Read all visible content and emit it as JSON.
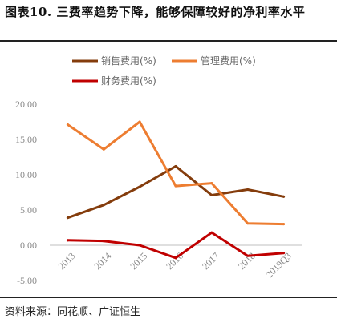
{
  "header": {
    "title": "图表10.  三费率趋势下降，能够保障较好的净利率水平"
  },
  "footer": {
    "source": "资料来源：同花顺、广证恒生"
  },
  "chart_data": {
    "type": "line",
    "title": "",
    "xlabel": "",
    "ylabel": "",
    "categories": [
      "2013",
      "2014",
      "2015",
      "2016",
      "2017",
      "2018",
      "2019Q3"
    ],
    "ylim": [
      -5,
      20
    ],
    "yticks": [
      "20.00",
      "15.00",
      "10.00",
      "5.00",
      "0.00",
      "-5.00"
    ],
    "ytick_values": [
      20,
      15,
      10,
      5,
      0,
      -5
    ],
    "grid": false,
    "legend_position": "top",
    "series": [
      {
        "name": "销售费用(%)",
        "color": "#843C0C",
        "values": [
          3.9,
          5.7,
          8.3,
          11.2,
          7.1,
          7.9,
          6.9
        ]
      },
      {
        "name": "管理费用(%)",
        "color": "#ED7D31",
        "values": [
          17.1,
          13.6,
          17.5,
          8.4,
          8.8,
          3.1,
          3.0
        ]
      },
      {
        "name": "财务费用(%)",
        "color": "#C00000",
        "values": [
          0.7,
          0.6,
          0.0,
          -1.8,
          1.8,
          -1.5,
          -1.1
        ]
      }
    ]
  }
}
